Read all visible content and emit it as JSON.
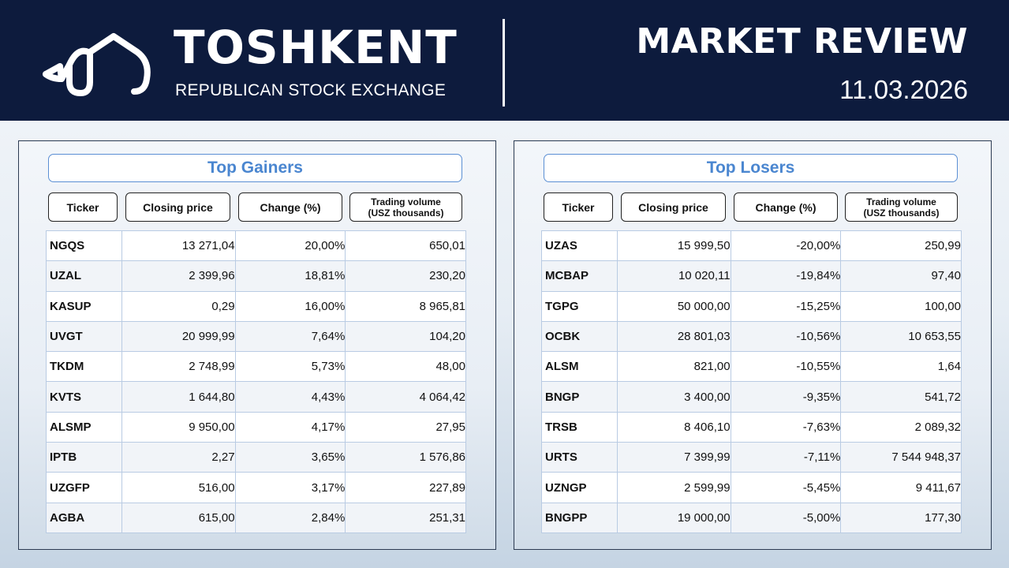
{
  "header": {
    "brand_name": "TOSHKENT",
    "brand_subtitle": "REPUBLICAN STOCK EXCHANGE",
    "report_title": "MARKET REVIEW",
    "report_date": "11.03.2026"
  },
  "colors": {
    "header_bg": "#0d1b3d",
    "accent_blue": "#4a86d0",
    "gain_green": "#2ea44f",
    "loss_red": "#e02424"
  },
  "columns": {
    "ticker": "Ticker",
    "closing_price": "Closing price",
    "change": "Change (%)",
    "volume_line1": "Trading volume",
    "volume_line2": "(USZ thousands)"
  },
  "gainers": {
    "title": "Top Gainers",
    "rows": [
      {
        "ticker": "NGQS",
        "price": "13 271,04",
        "change": "20,00%",
        "volume": "650,01"
      },
      {
        "ticker": "UZAL",
        "price": "2 399,96",
        "change": "18,81%",
        "volume": "230,20"
      },
      {
        "ticker": "KASUP",
        "price": "0,29",
        "change": "16,00%",
        "volume": "8 965,81"
      },
      {
        "ticker": "UVGT",
        "price": "20 999,99",
        "change": "7,64%",
        "volume": "104,20"
      },
      {
        "ticker": "TKDM",
        "price": "2 748,99",
        "change": "5,73%",
        "volume": "48,00"
      },
      {
        "ticker": "KVTS",
        "price": "1 644,80",
        "change": "4,43%",
        "volume": "4 064,42"
      },
      {
        "ticker": "ALSMP",
        "price": "9 950,00",
        "change": "4,17%",
        "volume": "27,95"
      },
      {
        "ticker": "IPTB",
        "price": "2,27",
        "change": "3,65%",
        "volume": "1 576,86"
      },
      {
        "ticker": "UZGFP",
        "price": "516,00",
        "change": "3,17%",
        "volume": "227,89"
      },
      {
        "ticker": "AGBA",
        "price": "615,00",
        "change": "2,84%",
        "volume": "251,31"
      }
    ]
  },
  "losers": {
    "title": "Top Losers",
    "rows": [
      {
        "ticker": "UZAS",
        "price": "15 999,50",
        "change": "-20,00%",
        "volume": "250,99"
      },
      {
        "ticker": "MCBAP",
        "price": "10 020,11",
        "change": "-19,84%",
        "volume": "97,40"
      },
      {
        "ticker": "TGPG",
        "price": "50 000,00",
        "change": "-15,25%",
        "volume": "100,00"
      },
      {
        "ticker": "OCBK",
        "price": "28 801,03",
        "change": "-10,56%",
        "volume": "10 653,55"
      },
      {
        "ticker": "ALSM",
        "price": "821,00",
        "change": "-10,55%",
        "volume": "1,64"
      },
      {
        "ticker": "BNGP",
        "price": "3 400,00",
        "change": "-9,35%",
        "volume": "541,72"
      },
      {
        "ticker": "TRSB",
        "price": "8 406,10",
        "change": "-7,63%",
        "volume": "2 089,32"
      },
      {
        "ticker": "URTS",
        "price": "7 399,99",
        "change": "-7,11%",
        "volume": "7 544 948,37"
      },
      {
        "ticker": "UZNGP",
        "price": "2 599,99",
        "change": "-5,45%",
        "volume": "9 411,67"
      },
      {
        "ticker": "BNGPP",
        "price": "19 000,00",
        "change": "-5,00%",
        "volume": "177,30"
      }
    ]
  }
}
